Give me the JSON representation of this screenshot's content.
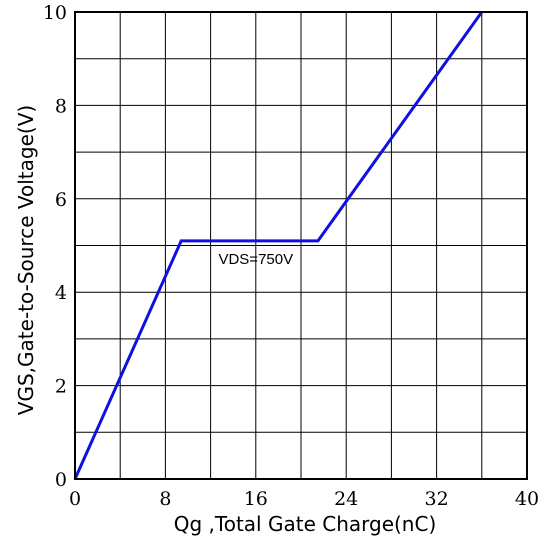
{
  "chart_data": {
    "type": "line",
    "title": "",
    "xlabel": "Qg ,Total Gate Charge(nC)",
    "ylabel": "VGS,Gate-to-Source Voltage(V)",
    "xlim": [
      0,
      40
    ],
    "ylim": [
      0,
      10
    ],
    "x_ticks": [
      0,
      8,
      16,
      24,
      32,
      40
    ],
    "y_ticks": [
      0,
      2,
      4,
      6,
      8,
      10
    ],
    "x_grid": [
      0,
      4,
      8,
      12,
      16,
      20,
      24,
      28,
      32,
      36,
      40
    ],
    "y_grid": [
      0,
      1,
      2,
      3,
      4,
      5,
      6,
      7,
      8,
      9,
      10
    ],
    "grid": true,
    "series": [
      {
        "x": [
          0,
          9.4,
          21.5,
          36
        ],
        "y": [
          0,
          5.1,
          5.1,
          10
        ],
        "color": "#1010e0"
      }
    ],
    "annotations": [
      {
        "text": "VDS=750V",
        "x": 16,
        "y": 4.6
      }
    ]
  }
}
